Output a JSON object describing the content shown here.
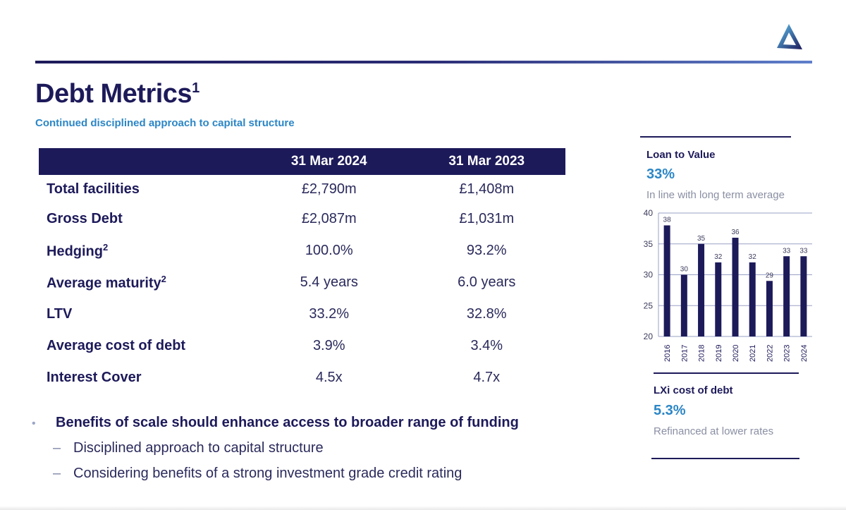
{
  "header": {
    "title": "Debt Metrics",
    "title_superscript": "1",
    "subtitle": "Continued disciplined approach to capital structure",
    "logo_icon": "triangle-logo-icon"
  },
  "table": {
    "columns": [
      "",
      "31 Mar 2024",
      "31 Mar 2023"
    ],
    "rows": [
      {
        "label": "Total facilities",
        "sup": "",
        "v2024": "£2,790m",
        "v2023": "£1,408m"
      },
      {
        "label": "Gross Debt",
        "sup": "",
        "v2024": "£2,087m",
        "v2023": "£1,031m"
      },
      {
        "label": "Hedging",
        "sup": "2",
        "v2024": "100.0%",
        "v2023": "93.2%"
      },
      {
        "label": "Average maturity",
        "sup": "2",
        "v2024": "5.4 years",
        "v2023": "6.0 years"
      },
      {
        "label": "LTV",
        "sup": "",
        "v2024": "33.2%",
        "v2023": "32.8%"
      },
      {
        "label": "Average cost of debt",
        "sup": "",
        "v2024": "3.9%",
        "v2023": "3.4%"
      },
      {
        "label": "Interest Cover",
        "sup": "",
        "v2024": "4.5x",
        "v2023": "4.7x"
      }
    ]
  },
  "bullets": {
    "main": "Benefits of scale should enhance access to broader range of funding",
    "subs": [
      "Disciplined approach to capital structure",
      "Considering benefits of a strong investment grade credit rating"
    ]
  },
  "ltv_panel": {
    "label": "Loan to Value",
    "value": "33%",
    "note": "In line with long term average"
  },
  "cost_panel": {
    "label": "LXi cost of debt",
    "value": "5.3%",
    "note": "Refinanced at lower rates"
  },
  "colors": {
    "navy": "#1d1a5a",
    "accent_blue": "#2b86c6",
    "grey": "#8a8fa3"
  },
  "chart_data": {
    "type": "bar",
    "title": "Loan to Value",
    "categories": [
      "2016",
      "2017",
      "2018",
      "2019",
      "2020",
      "2021",
      "2022",
      "2023",
      "2024"
    ],
    "values": [
      38,
      30,
      35,
      32,
      36,
      32,
      29,
      33,
      33
    ],
    "ylim": [
      20,
      40
    ],
    "yticks": [
      20,
      25,
      30,
      35,
      40
    ],
    "grid": true,
    "xlabel": "",
    "ylabel": ""
  }
}
